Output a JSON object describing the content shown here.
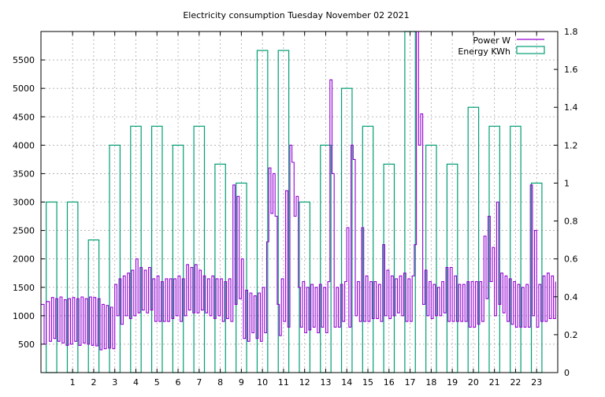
{
  "chart_data": {
    "type": "line",
    "title": "Electricity consumption Tuesday November 02 2021",
    "xlabel": "",
    "ylabel": "",
    "y2label": "",
    "xlim": [
      -0.5,
      24
    ],
    "ylim": [
      0,
      6000
    ],
    "y2lim": [
      0,
      1.8
    ],
    "grid": true,
    "legend_position": "top-right",
    "x_ticks": [
      1,
      2,
      3,
      4,
      5,
      6,
      7,
      8,
      9,
      10,
      11,
      12,
      13,
      14,
      15,
      16,
      17,
      18,
      19,
      20,
      21,
      22,
      23
    ],
    "y_ticks": [
      500,
      1000,
      1500,
      2000,
      2500,
      3000,
      3500,
      4000,
      4500,
      5000,
      5500
    ],
    "y2_ticks": [
      0,
      0.2,
      0.4,
      0.6,
      0.8,
      1,
      1.2,
      1.4,
      1.6,
      1.8
    ],
    "series": [
      {
        "name": "Power W",
        "type": "line",
        "axis": "y1",
        "color": "#9400d3",
        "points": [
          [
            -0.5,
            1200
          ],
          [
            -0.35,
            500
          ],
          [
            -0.25,
            1250
          ],
          [
            -0.1,
            550
          ],
          [
            0,
            1320
          ],
          [
            0.1,
            600
          ],
          [
            0.2,
            1300
          ],
          [
            0.3,
            550
          ],
          [
            0.4,
            1330
          ],
          [
            0.5,
            520
          ],
          [
            0.6,
            1280
          ],
          [
            0.7,
            480
          ],
          [
            0.8,
            1300
          ],
          [
            0.9,
            500
          ],
          [
            1.0,
            1320
          ],
          [
            1.1,
            550
          ],
          [
            1.2,
            1300
          ],
          [
            1.3,
            480
          ],
          [
            1.4,
            1330
          ],
          [
            1.5,
            520
          ],
          [
            1.6,
            1300
          ],
          [
            1.7,
            500
          ],
          [
            1.8,
            1330
          ],
          [
            1.9,
            480
          ],
          [
            2.0,
            1320
          ],
          [
            2.1,
            470
          ],
          [
            2.2,
            1300
          ],
          [
            2.3,
            400
          ],
          [
            2.4,
            1200
          ],
          [
            2.5,
            420
          ],
          [
            2.6,
            1180
          ],
          [
            2.7,
            430
          ],
          [
            2.8,
            1150
          ],
          [
            2.9,
            420
          ],
          [
            3.0,
            1550
          ],
          [
            3.1,
            1000
          ],
          [
            3.2,
            1650
          ],
          [
            3.3,
            850
          ],
          [
            3.4,
            1700
          ],
          [
            3.5,
            1000
          ],
          [
            3.6,
            1750
          ],
          [
            3.7,
            950
          ],
          [
            3.8,
            1800
          ],
          [
            3.9,
            1000
          ],
          [
            4.0,
            2000
          ],
          [
            4.1,
            1050
          ],
          [
            4.2,
            1850
          ],
          [
            4.3,
            1100
          ],
          [
            4.4,
            1800
          ],
          [
            4.5,
            1050
          ],
          [
            4.6,
            1850
          ],
          [
            4.7,
            1100
          ],
          [
            4.8,
            1650
          ],
          [
            4.9,
            900
          ],
          [
            5.0,
            1700
          ],
          [
            5.1,
            900
          ],
          [
            5.2,
            1600
          ],
          [
            5.3,
            900
          ],
          [
            5.4,
            1650
          ],
          [
            5.5,
            900
          ],
          [
            5.6,
            1650
          ],
          [
            5.7,
            950
          ],
          [
            5.8,
            1650
          ],
          [
            5.9,
            1000
          ],
          [
            6.0,
            1700
          ],
          [
            6.1,
            900
          ],
          [
            6.2,
            1650
          ],
          [
            6.3,
            1000
          ],
          [
            6.4,
            1900
          ],
          [
            6.5,
            1100
          ],
          [
            6.6,
            1850
          ],
          [
            6.7,
            1050
          ],
          [
            6.8,
            1900
          ],
          [
            6.9,
            1050
          ],
          [
            7.0,
            1800
          ],
          [
            7.1,
            1100
          ],
          [
            7.2,
            1700
          ],
          [
            7.3,
            1050
          ],
          [
            7.4,
            1650
          ],
          [
            7.5,
            1000
          ],
          [
            7.6,
            1700
          ],
          [
            7.7,
            950
          ],
          [
            7.8,
            1650
          ],
          [
            7.9,
            1000
          ],
          [
            8.0,
            1650
          ],
          [
            8.1,
            900
          ],
          [
            8.2,
            1600
          ],
          [
            8.3,
            950
          ],
          [
            8.4,
            1650
          ],
          [
            8.5,
            900
          ],
          [
            8.6,
            3300
          ],
          [
            8.7,
            1200
          ],
          [
            8.8,
            3100
          ],
          [
            8.9,
            1300
          ],
          [
            9.0,
            2000
          ],
          [
            9.1,
            600
          ],
          [
            9.2,
            1450
          ],
          [
            9.3,
            550
          ],
          [
            9.4,
            1400
          ],
          [
            9.5,
            700
          ],
          [
            9.6,
            1350
          ],
          [
            9.7,
            600
          ],
          [
            9.8,
            1400
          ],
          [
            9.9,
            550
          ],
          [
            10.0,
            1500
          ],
          [
            10.1,
            700
          ],
          [
            10.2,
            2300
          ],
          [
            10.3,
            3600
          ],
          [
            10.4,
            2800
          ],
          [
            10.5,
            3500
          ],
          [
            10.6,
            2750
          ],
          [
            10.7,
            1200
          ],
          [
            10.8,
            650
          ],
          [
            10.9,
            1650
          ],
          [
            11.0,
            900
          ],
          [
            11.1,
            3200
          ],
          [
            11.2,
            800
          ],
          [
            11.3,
            4000
          ],
          [
            11.4,
            3700
          ],
          [
            11.5,
            2750
          ],
          [
            11.6,
            3100
          ],
          [
            11.7,
            1500
          ],
          [
            11.8,
            800
          ],
          [
            11.9,
            1600
          ],
          [
            12.0,
            700
          ],
          [
            12.1,
            1500
          ],
          [
            12.2,
            750
          ],
          [
            12.3,
            1550
          ],
          [
            12.4,
            800
          ],
          [
            12.5,
            1500
          ],
          [
            12.6,
            700
          ],
          [
            12.7,
            1550
          ],
          [
            12.8,
            800
          ],
          [
            12.9,
            1500
          ],
          [
            13.0,
            700
          ],
          [
            13.1,
            1600
          ],
          [
            13.2,
            5150
          ],
          [
            13.3,
            3500
          ],
          [
            13.4,
            800
          ],
          [
            13.5,
            1500
          ],
          [
            13.6,
            800
          ],
          [
            13.7,
            1550
          ],
          [
            13.8,
            900
          ],
          [
            13.9,
            1600
          ],
          [
            14.0,
            2550
          ],
          [
            14.1,
            800
          ],
          [
            14.2,
            4000
          ],
          [
            14.3,
            3750
          ],
          [
            14.4,
            1000
          ],
          [
            14.5,
            1600
          ],
          [
            14.6,
            900
          ],
          [
            14.7,
            2550
          ],
          [
            14.8,
            900
          ],
          [
            14.9,
            1700
          ],
          [
            15.0,
            900
          ],
          [
            15.1,
            1600
          ],
          [
            15.2,
            950
          ],
          [
            15.3,
            1600
          ],
          [
            15.4,
            950
          ],
          [
            15.5,
            1550
          ],
          [
            15.6,
            900
          ],
          [
            15.7,
            2250
          ],
          [
            15.8,
            1000
          ],
          [
            15.9,
            1800
          ],
          [
            16.0,
            950
          ],
          [
            16.1,
            1700
          ],
          [
            16.2,
            1000
          ],
          [
            16.3,
            1650
          ],
          [
            16.4,
            1050
          ],
          [
            16.5,
            1700
          ],
          [
            16.6,
            1000
          ],
          [
            16.7,
            1750
          ],
          [
            16.8,
            900
          ],
          [
            16.9,
            1650
          ],
          [
            17.0,
            900
          ],
          [
            17.1,
            1700
          ],
          [
            17.2,
            2250
          ],
          [
            17.3,
            6000
          ],
          [
            17.4,
            4000
          ],
          [
            17.5,
            4550
          ],
          [
            17.6,
            1200
          ],
          [
            17.7,
            1800
          ],
          [
            17.8,
            1000
          ],
          [
            17.9,
            1600
          ],
          [
            18.0,
            950
          ],
          [
            18.1,
            1550
          ],
          [
            18.2,
            1000
          ],
          [
            18.3,
            1500
          ],
          [
            18.4,
            1000
          ],
          [
            18.5,
            1600
          ],
          [
            18.6,
            1050
          ],
          [
            18.7,
            1850
          ],
          [
            18.8,
            900
          ],
          [
            18.9,
            1850
          ],
          [
            19.0,
            900
          ],
          [
            19.1,
            1700
          ],
          [
            19.2,
            900
          ],
          [
            19.3,
            1550
          ],
          [
            19.4,
            900
          ],
          [
            19.5,
            1550
          ],
          [
            19.6,
            900
          ],
          [
            19.7,
            1600
          ],
          [
            19.8,
            800
          ],
          [
            19.9,
            1600
          ],
          [
            20.0,
            800
          ],
          [
            20.1,
            1600
          ],
          [
            20.2,
            850
          ],
          [
            20.3,
            1600
          ],
          [
            20.4,
            900
          ],
          [
            20.5,
            2400
          ],
          [
            20.6,
            1300
          ],
          [
            20.7,
            2750
          ],
          [
            20.8,
            1600
          ],
          [
            20.9,
            2200
          ],
          [
            21.0,
            1000
          ],
          [
            21.1,
            3000
          ],
          [
            21.2,
            1200
          ],
          [
            21.3,
            1750
          ],
          [
            21.4,
            1050
          ],
          [
            21.5,
            1700
          ],
          [
            21.6,
            900
          ],
          [
            21.7,
            1650
          ],
          [
            21.8,
            850
          ],
          [
            21.9,
            1600
          ],
          [
            22.0,
            800
          ],
          [
            22.1,
            1550
          ],
          [
            22.2,
            800
          ],
          [
            22.3,
            1500
          ],
          [
            22.4,
            800
          ],
          [
            22.5,
            1550
          ],
          [
            22.6,
            800
          ],
          [
            22.7,
            3300
          ],
          [
            22.8,
            1000
          ],
          [
            22.9,
            2500
          ],
          [
            23.0,
            800
          ],
          [
            23.1,
            1550
          ],
          [
            23.2,
            900
          ],
          [
            23.3,
            1700
          ],
          [
            23.4,
            900
          ],
          [
            23.5,
            1750
          ],
          [
            23.6,
            950
          ],
          [
            23.7,
            1700
          ],
          [
            23.8,
            950
          ],
          [
            23.9,
            1600
          ]
        ]
      },
      {
        "name": "Energy KWh",
        "type": "bar",
        "axis": "y2",
        "color": "#009e73",
        "hours": [
          0,
          1,
          2,
          3,
          4,
          5,
          6,
          7,
          8,
          9,
          10,
          11,
          12,
          13,
          14,
          15,
          16,
          17,
          18,
          19,
          20,
          21,
          22,
          23
        ],
        "values": [
          0.9,
          0.9,
          0.7,
          1.2,
          1.3,
          1.3,
          1.2,
          1.3,
          1.1,
          1.0,
          1.7,
          1.7,
          0.9,
          1.2,
          1.5,
          1.3,
          1.1,
          1.8,
          1.2,
          1.1,
          1.4,
          1.3,
          1.3,
          1.0
        ]
      }
    ]
  }
}
